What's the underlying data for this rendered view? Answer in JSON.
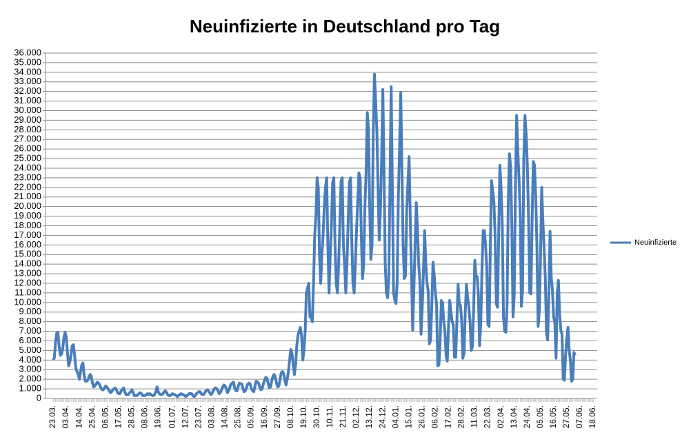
{
  "chart_data": {
    "type": "line",
    "title": "Neuinfizierte in Deutschland pro Tag",
    "categories": [
      "23.03.",
      null,
      null,
      null,
      null,
      null,
      null,
      null,
      null,
      null,
      null,
      "03.04.",
      null,
      null,
      null,
      null,
      null,
      null,
      null,
      null,
      null,
      null,
      "14.04.",
      null,
      null,
      null,
      null,
      null,
      null,
      null,
      null,
      null,
      null,
      "25.04.",
      null,
      null,
      null,
      null,
      null,
      null,
      null,
      null,
      null,
      null,
      "06.05.",
      null,
      null,
      null,
      null,
      null,
      null,
      null,
      null,
      null,
      null,
      "17.05.",
      null,
      null,
      null,
      null,
      null,
      null,
      null,
      null,
      null,
      null,
      "28.05.",
      null,
      null,
      null,
      null,
      null,
      null,
      null,
      null,
      null,
      null,
      "08.06.",
      null,
      null,
      null,
      null,
      null,
      null,
      null,
      null,
      null,
      null,
      "19.06.",
      null,
      null,
      null,
      null,
      null,
      null,
      null,
      null,
      null,
      null,
      null,
      "01.07.",
      null,
      null,
      null,
      null,
      null,
      null,
      null,
      null,
      null,
      null,
      "12.07.",
      null,
      null,
      null,
      null,
      null,
      null,
      null,
      null,
      null,
      null,
      "23.07.",
      null,
      null,
      null,
      null,
      null,
      null,
      null,
      null,
      null,
      null,
      "03.08.",
      null,
      null,
      null,
      null,
      null,
      null,
      null,
      null,
      null,
      null,
      "14.08.",
      null,
      null,
      null,
      null,
      null,
      null,
      null,
      null,
      null,
      null,
      "25.08.",
      null,
      null,
      null,
      null,
      null,
      null,
      null,
      null,
      null,
      null,
      "05.09.",
      null,
      null,
      null,
      null,
      null,
      null,
      null,
      null,
      null,
      null,
      "16.09.",
      null,
      null,
      null,
      null,
      null,
      null,
      null,
      null,
      null,
      null,
      "27.09.",
      null,
      null,
      null,
      null,
      null,
      null,
      null,
      null,
      null,
      null,
      "08.10.",
      null,
      null,
      null,
      null,
      null,
      null,
      null,
      null,
      null,
      null,
      "19.10.",
      null,
      null,
      null,
      null,
      null,
      null,
      null,
      null,
      null,
      null,
      "30.10.",
      null,
      null,
      null,
      null,
      null,
      null,
      null,
      null,
      null,
      null,
      "10.11.",
      null,
      null,
      null,
      null,
      null,
      null,
      null,
      null,
      null,
      null,
      "21.11.",
      null,
      null,
      null,
      null,
      null,
      null,
      null,
      null,
      null,
      null,
      "02.12.",
      null,
      null,
      null,
      null,
      null,
      null,
      null,
      null,
      null,
      null,
      "13.12.",
      null,
      null,
      null,
      null,
      null,
      null,
      null,
      null,
      null,
      null,
      "24.12.",
      null,
      null,
      null,
      null,
      null,
      null,
      null,
      null,
      null,
      null,
      "04.01.",
      null,
      null,
      null,
      null,
      null,
      null,
      null,
      null,
      null,
      null,
      "15.01.",
      null,
      null,
      null,
      null,
      null,
      null,
      null,
      null,
      null,
      null,
      "26.01.",
      null,
      null,
      null,
      null,
      null,
      null,
      null,
      null,
      null,
      null,
      "06.02.",
      null,
      null,
      null,
      null,
      null,
      null,
      null,
      null,
      null,
      null,
      "17.02.",
      null,
      null,
      null,
      null,
      null,
      null,
      null,
      null,
      null,
      null,
      "28.02.",
      null,
      null,
      null,
      null,
      null,
      null,
      null,
      null,
      null,
      null,
      "11.03.",
      null,
      null,
      null,
      null,
      null,
      null,
      null,
      null,
      null,
      null,
      "22.03.",
      null,
      null,
      null,
      null,
      null,
      null,
      null,
      null,
      null,
      null,
      "02.04.",
      null,
      null,
      null,
      null,
      null,
      null,
      null,
      null,
      null,
      null,
      "13.04.",
      null,
      null,
      null,
      null,
      null,
      null,
      null,
      null,
      null,
      null,
      "24.04.",
      null,
      null,
      null,
      null,
      null,
      null,
      null,
      null,
      null,
      null,
      "05.05.",
      null,
      null,
      null,
      null,
      null,
      null,
      null,
      null,
      null,
      null,
      "16.05.",
      null,
      null,
      null,
      null,
      null,
      null,
      null,
      null,
      null,
      null,
      "27.05.",
      null,
      null,
      null,
      null,
      null,
      null,
      null,
      null,
      null,
      null,
      "07.06.",
      null,
      null,
      null,
      null,
      null,
      null,
      null,
      null,
      null,
      null,
      "18.06."
    ],
    "series": [
      {
        "name": "Neuinfizierte",
        "color": "#4a7ebb",
        "values": [
          4000,
          4200,
          5800,
          6800,
          6900,
          5500,
          4500,
          4600,
          5100,
          6300,
          6900,
          6400,
          4800,
          3400,
          3800,
          4500,
          5500,
          5600,
          4500,
          3200,
          2800,
          2500,
          2000,
          2800,
          3500,
          3700,
          2400,
          1800,
          1800,
          1900,
          2200,
          2500,
          2300,
          1600,
          1200,
          1300,
          1500,
          1700,
          1600,
          1400,
          1100,
          900,
          900,
          1100,
          1300,
          1200,
          1000,
          800,
          600,
          700,
          900,
          1000,
          1100,
          900,
          600,
          500,
          500,
          800,
          900,
          1100,
          700,
          400,
          400,
          400,
          600,
          700,
          900,
          600,
          300,
          300,
          300,
          400,
          500,
          600,
          500,
          300,
          300,
          300,
          400,
          500,
          400,
          500,
          400,
          300,
          300,
          400,
          700,
          1200,
          700,
          500,
          400,
          400,
          500,
          700,
          800,
          600,
          400,
          300,
          300,
          400,
          500,
          400,
          400,
          300,
          200,
          300,
          400,
          500,
          400,
          400,
          300,
          200,
          300,
          400,
          500,
          500,
          500,
          300,
          200,
          300,
          500,
          600,
          700,
          700,
          500,
          400,
          400,
          600,
          800,
          900,
          800,
          600,
          400,
          500,
          800,
          1000,
          1100,
          1000,
          800,
          500,
          600,
          900,
          1200,
          1400,
          1300,
          1000,
          600,
          800,
          1200,
          1500,
          1600,
          1700,
          1100,
          800,
          800,
          1300,
          1600,
          1500,
          1500,
          1000,
          700,
          800,
          1200,
          1500,
          1600,
          1500,
          1000,
          800,
          700,
          1300,
          1800,
          1700,
          1600,
          1200,
          900,
          1000,
          1500,
          1900,
          2200,
          2100,
          1600,
          1100,
          1200,
          1800,
          2300,
          2500,
          2200,
          1600,
          1200,
          1300,
          2000,
          2700,
          2800,
          2600,
          1900,
          1400,
          2000,
          2800,
          4000,
          5100,
          4700,
          3500,
          2500,
          3500,
          5500,
          6600,
          7000,
          7400,
          6500,
          4000,
          5000,
          7000,
          11000,
          11500,
          12000,
          8500,
          8500,
          8000,
          12000,
          17000,
          19000,
          23000,
          22000,
          15000,
          12000,
          15000,
          17000,
          20000,
          22000,
          23000,
          16000,
          11000,
          15000,
          18000,
          22500,
          23000,
          16000,
          12000,
          11000,
          14000,
          18000,
          22600,
          23000,
          16000,
          14000,
          11000,
          14000,
          18500,
          22500,
          23000,
          16500,
          12000,
          11000,
          14000,
          17500,
          20500,
          23500,
          23000,
          17000,
          12500,
          14000,
          20000,
          23500,
          29800,
          28000,
          20000,
          14500,
          16000,
          27700,
          33800,
          31000,
          28000,
          22000,
          16500,
          19500,
          25000,
          32200,
          24000,
          14000,
          11000,
          10500,
          12500,
          22500,
          32500,
          22000,
          11000,
          10300,
          9900,
          12000,
          21000,
          26000,
          31900,
          24000,
          16000,
          12500,
          12800,
          19600,
          22400,
          25200,
          18700,
          13000,
          7100,
          11400,
          15900,
          20400,
          17900,
          14000,
          12300,
          6700,
          9500,
          13200,
          17500,
          14000,
          12000,
          11200,
          5700,
          6100,
          9700,
          14200,
          12900,
          11000,
          9800,
          3400,
          3500,
          6100,
          10200,
          10000,
          8000,
          7000,
          4400,
          3900,
          7600,
          10200,
          9100,
          8000,
          7700,
          4300,
          4300,
          8000,
          11900,
          9900,
          9700,
          8100,
          4200,
          4700,
          9000,
          11900,
          10600,
          9500,
          8100,
          5000,
          5400,
          9100,
          14400,
          12800,
          12700,
          10800,
          5500,
          7800,
          13400,
          17500,
          17500,
          16000,
          13700,
          7700,
          7500,
          15800,
          22700,
          21600,
          20500,
          17000,
          9900,
          9500,
          17000,
          24300,
          21900,
          18100,
          8500,
          7000,
          6900,
          9700,
          20400,
          25500,
          24100,
          17900,
          8500,
          10800,
          21700,
          29500,
          25800,
          23000,
          19200,
          9600,
          11400,
          24900,
          29500,
          27500,
          24300,
          18800,
          11000,
          10900,
          18800,
          24700,
          24300,
          21000,
          16000,
          7500,
          9200,
          14700,
          22000,
          18500,
          15700,
          12600,
          6900,
          6100,
          11000,
          17400,
          12600,
          11300,
          8500,
          7900,
          4200,
          11000,
          12300,
          8800,
          7100,
          6700,
          2000,
          1900,
          4500,
          6200,
          7400,
          5000,
          4000,
          1800,
          2000,
          4800,
          4500,
          null,
          null,
          null,
          null,
          null,
          null,
          null,
          null,
          null,
          null,
          null,
          null,
          null,
          null,
          null
        ]
      }
    ],
    "ylim": [
      0,
      36000
    ],
    "yticks": [
      0,
      {
        "value": 1000,
        "label": "1.000"
      },
      {
        "value": 2000,
        "label": "2.000"
      },
      {
        "value": 3000,
        "label": "3.000"
      },
      {
        "value": 4000,
        "label": "4.000"
      },
      {
        "value": 5000,
        "label": "5.000"
      },
      {
        "value": 6000,
        "label": "6.000"
      },
      {
        "value": 7000,
        "label": "7.000"
      },
      {
        "value": 8000,
        "label": "8.000"
      },
      {
        "value": 9000,
        "label": "9.000"
      },
      {
        "value": 10000,
        "label": "10.000"
      },
      {
        "value": 11000,
        "label": "11.000"
      },
      {
        "value": 12000,
        "label": "12.000"
      },
      {
        "value": 13000,
        "label": "13.000"
      },
      {
        "value": 14000,
        "label": "14.000"
      },
      {
        "value": 15000,
        "label": "15.000"
      },
      {
        "value": 16000,
        "label": "16.000"
      },
      {
        "value": 17000,
        "label": "17.000"
      },
      {
        "value": 18000,
        "label": "18.000"
      },
      {
        "value": 19000,
        "label": "19.000"
      },
      {
        "value": 20000,
        "label": "20.000"
      },
      {
        "value": 21000,
        "label": "21.000"
      },
      {
        "value": 22000,
        "label": "22.000"
      },
      {
        "value": 23000,
        "label": "23.000"
      },
      {
        "value": 24000,
        "label": "24.000"
      },
      {
        "value": 25000,
        "label": "25.000"
      },
      {
        "value": 26000,
        "label": "26.000"
      },
      {
        "value": 27000,
        "label": "27.000"
      },
      {
        "value": 28000,
        "label": "28.000"
      },
      {
        "value": 29000,
        "label": "29.000"
      },
      {
        "value": 30000,
        "label": "30.000"
      },
      {
        "value": 31000,
        "label": "31.000"
      },
      {
        "value": 32000,
        "label": "32.000"
      },
      {
        "value": 33000,
        "label": "33.000"
      },
      {
        "value": 34000,
        "label": "34.000"
      },
      {
        "value": 35000,
        "label": "35.000"
      },
      {
        "value": 36000,
        "label": "36.000"
      }
    ],
    "grid": true,
    "legend": "right"
  }
}
